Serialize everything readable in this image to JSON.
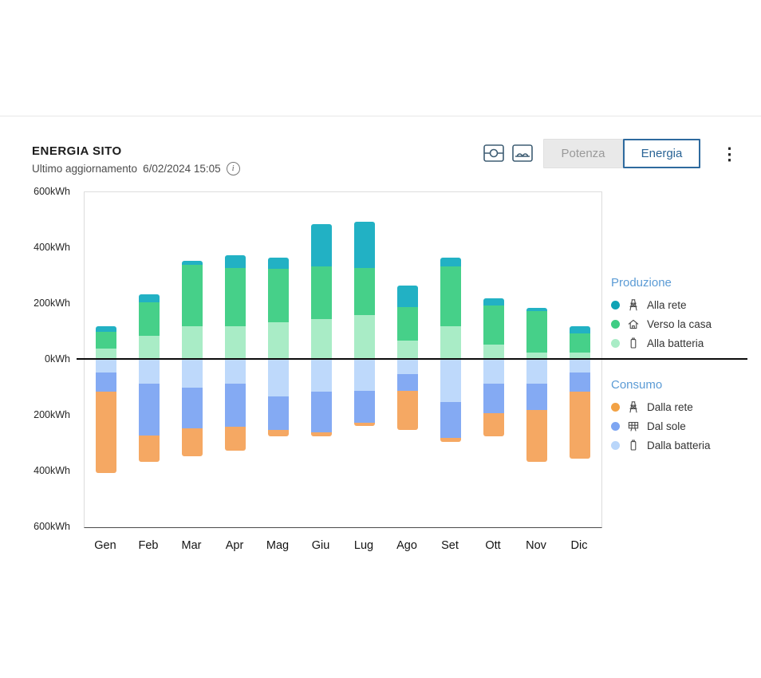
{
  "header": {
    "title": "ENERGIA SITO",
    "last_update_label": "Ultimo aggiornamento",
    "last_update_value": "6/02/2024 15:05"
  },
  "toolbar": {
    "potenza_label": "Potenza",
    "energia_label": "Energia",
    "view_icons": [
      "flow-view-icon",
      "balance-view-icon"
    ]
  },
  "icons": {
    "info": "i",
    "kebab": "⋮"
  },
  "legend": {
    "produzione": {
      "title": "Produzione",
      "items": [
        {
          "label": "Alla rete",
          "color": "#0fa3b5",
          "icon": "pylon-icon"
        },
        {
          "label": "Verso la casa",
          "color": "#3fcd84",
          "icon": "house-icon"
        },
        {
          "label": "Alla batteria",
          "color": "#a9ecc6",
          "icon": "battery-icon"
        }
      ]
    },
    "consumo": {
      "title": "Consumo",
      "items": [
        {
          "label": "Dalla rete",
          "color": "#f2a245",
          "icon": "pylon-icon"
        },
        {
          "label": "Dal sole",
          "color": "#7ea6f2",
          "icon": "solar-panel-icon"
        },
        {
          "label": "Dalla batteria",
          "color": "#b9d6fa",
          "icon": "battery-icon"
        }
      ]
    }
  },
  "chart_data": {
    "type": "bar",
    "stacked": true,
    "unit": "kWh",
    "title": "ENERGIA SITO",
    "categories": [
      "Gen",
      "Feb",
      "Mar",
      "Apr",
      "Mag",
      "Giu",
      "Lug",
      "Ago",
      "Set",
      "Ott",
      "Nov",
      "Dic"
    ],
    "y_ticks": [
      "600kWh",
      "400kWh",
      "200kWh",
      "0kWh",
      "200kWh",
      "400kWh",
      "600kWh"
    ],
    "y_max": 600,
    "y_min": -600,
    "grid": false,
    "legend_position": "right",
    "positive_stack_order": [
      "Alla batteria",
      "Verso la casa",
      "Alla rete"
    ],
    "negative_stack_order": [
      "Dalla batteria",
      "Dal sole",
      "Dalla rete"
    ],
    "series": [
      {
        "name": "Alla rete",
        "group": "produzione",
        "color": "#22b1c4",
        "values": [
          20,
          30,
          15,
          45,
          40,
          150,
          165,
          75,
          30,
          25,
          10,
          25
        ]
      },
      {
        "name": "Verso la casa",
        "group": "produzione",
        "color": "#46d089",
        "values": [
          60,
          120,
          220,
          210,
          190,
          190,
          170,
          120,
          215,
          140,
          150,
          70
        ]
      },
      {
        "name": "Alla batteria",
        "group": "produzione",
        "color": "#a9ecc6",
        "values": [
          40,
          85,
          120,
          120,
          135,
          145,
          160,
          70,
          120,
          55,
          25,
          25
        ]
      },
      {
        "name": "Dalla rete",
        "group": "consumo",
        "color": "#f5a863",
        "values": [
          290,
          95,
          100,
          85,
          25,
          15,
          12,
          140,
          15,
          85,
          185,
          240
        ]
      },
      {
        "name": "Dal sole",
        "group": "consumo",
        "color": "#84aaf3",
        "values": [
          70,
          185,
          145,
          155,
          120,
          145,
          115,
          60,
          130,
          105,
          95,
          70
        ]
      },
      {
        "name": "Dalla batteria",
        "group": "consumo",
        "color": "#bed9fb",
        "values": [
          45,
          85,
          100,
          85,
          130,
          115,
          110,
          50,
          150,
          85,
          85,
          45
        ]
      }
    ]
  }
}
